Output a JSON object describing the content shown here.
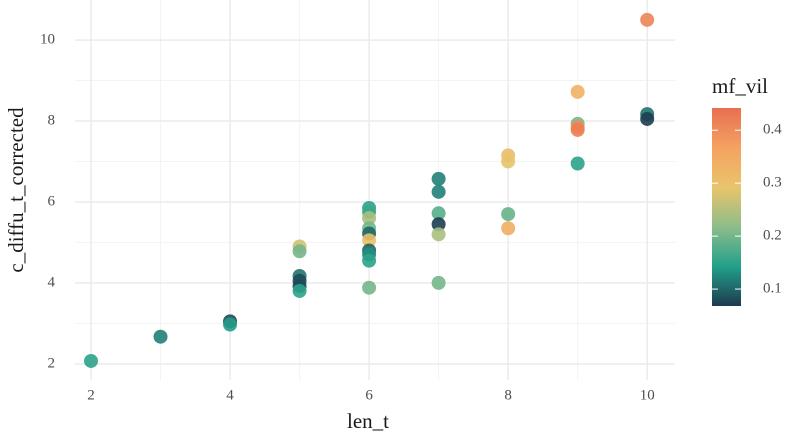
{
  "chart_data": {
    "type": "scatter",
    "x_label": "len_t",
    "y_label": "c_diffu_t_corrected",
    "color_label": "mf_vil",
    "x": [
      2,
      3,
      4,
      4,
      5,
      5,
      5,
      5,
      5,
      5,
      6,
      6,
      6,
      6,
      6,
      6,
      6,
      6,
      6,
      6,
      7,
      7,
      7,
      7,
      7,
      7,
      8,
      8,
      8,
      8,
      9,
      9,
      9,
      9,
      9,
      10,
      10,
      10
    ],
    "values": [
      2.07,
      2.67,
      3.05,
      2.97,
      4.9,
      4.78,
      4.17,
      4.05,
      3.92,
      3.8,
      5.85,
      5.75,
      5.6,
      5.35,
      5.22,
      5.05,
      4.8,
      4.7,
      4.55,
      3.88,
      6.57,
      6.25,
      5.72,
      5.45,
      5.2,
      4.0,
      7.15,
      7.0,
      5.7,
      5.35,
      8.72,
      7.93,
      7.85,
      7.78,
      6.95,
      10.5,
      8.17,
      8.05
    ],
    "color_values": [
      0.15,
      0.12,
      0.08,
      0.14,
      0.27,
      0.2,
      0.11,
      0.08,
      0.08,
      0.15,
      0.15,
      0.16,
      0.24,
      0.2,
      0.1,
      0.3,
      0.1,
      0.13,
      0.15,
      0.2,
      0.12,
      0.12,
      0.18,
      0.07,
      0.24,
      0.2,
      0.31,
      0.29,
      0.19,
      0.34,
      0.33,
      0.2,
      0.4,
      0.42,
      0.15,
      0.41,
      0.11,
      0.07
    ],
    "xlim": [
      1.77,
      10.4
    ],
    "ylim": [
      1.6,
      10.99
    ],
    "xticks": [
      2,
      4,
      6,
      8,
      10
    ],
    "yticks": [
      2,
      4,
      6,
      8,
      10
    ],
    "xminor": [
      3,
      5,
      7,
      9
    ],
    "yminor": [
      3,
      5,
      7,
      9
    ],
    "colorlim": [
      0.068,
      0.442
    ],
    "colorticks": [
      0.1,
      0.2,
      0.3,
      0.4
    ],
    "colormap": [
      "#1d3a4f",
      "#22a08a",
      "#8dbd8a",
      "#e9c46a",
      "#f4a261",
      "#e76f51"
    ],
    "grid": true
  }
}
